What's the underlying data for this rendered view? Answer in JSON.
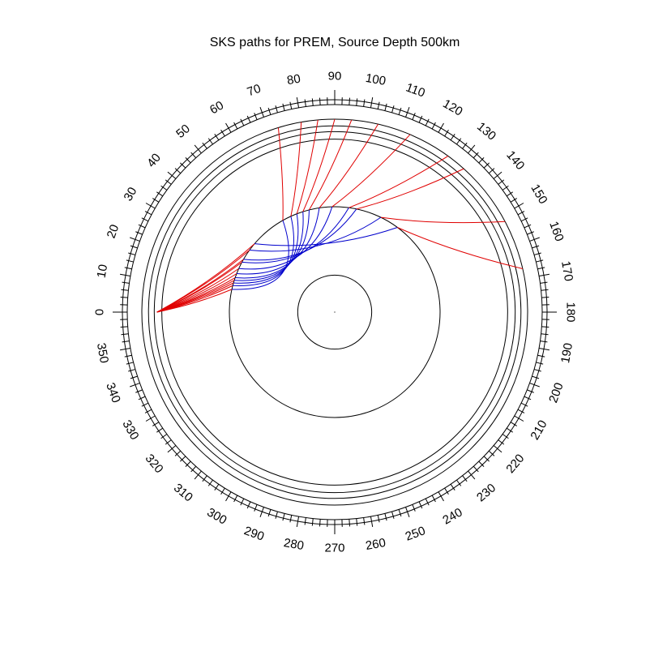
{
  "title": "SKS paths for PREM, Source Depth 500km",
  "chart_data": {
    "type": "diagram",
    "model": "PREM",
    "phase": "SKS",
    "source_depth_km": 500,
    "earth_radius_km": 6371,
    "discontinuity_radii_km": [
      6371,
      6151,
      5961,
      5711,
      3480,
      1221.5
    ],
    "angle_ticks": {
      "major_step_deg": 10,
      "minor_step_deg": 2,
      "labels": [
        "0",
        "10",
        "20",
        "30",
        "40",
        "50",
        "60",
        "70",
        "80",
        "90",
        "100",
        "110",
        "120",
        "130",
        "140",
        "150",
        "160",
        "170",
        "180",
        "190",
        "200",
        "210",
        "220",
        "230",
        "240",
        "250",
        "260",
        "270",
        "280",
        "290",
        "300",
        "310",
        "320",
        "330",
        "340",
        "350"
      ]
    },
    "source_angle_deg": 0,
    "ray_arrival_angles_deg": [
      73,
      80,
      85,
      90,
      95,
      103,
      113,
      126,
      132,
      152,
      167
    ],
    "colors": {
      "mantle_leg": "#e00000",
      "core_leg": "#0000cc",
      "circles": "#000000"
    }
  }
}
